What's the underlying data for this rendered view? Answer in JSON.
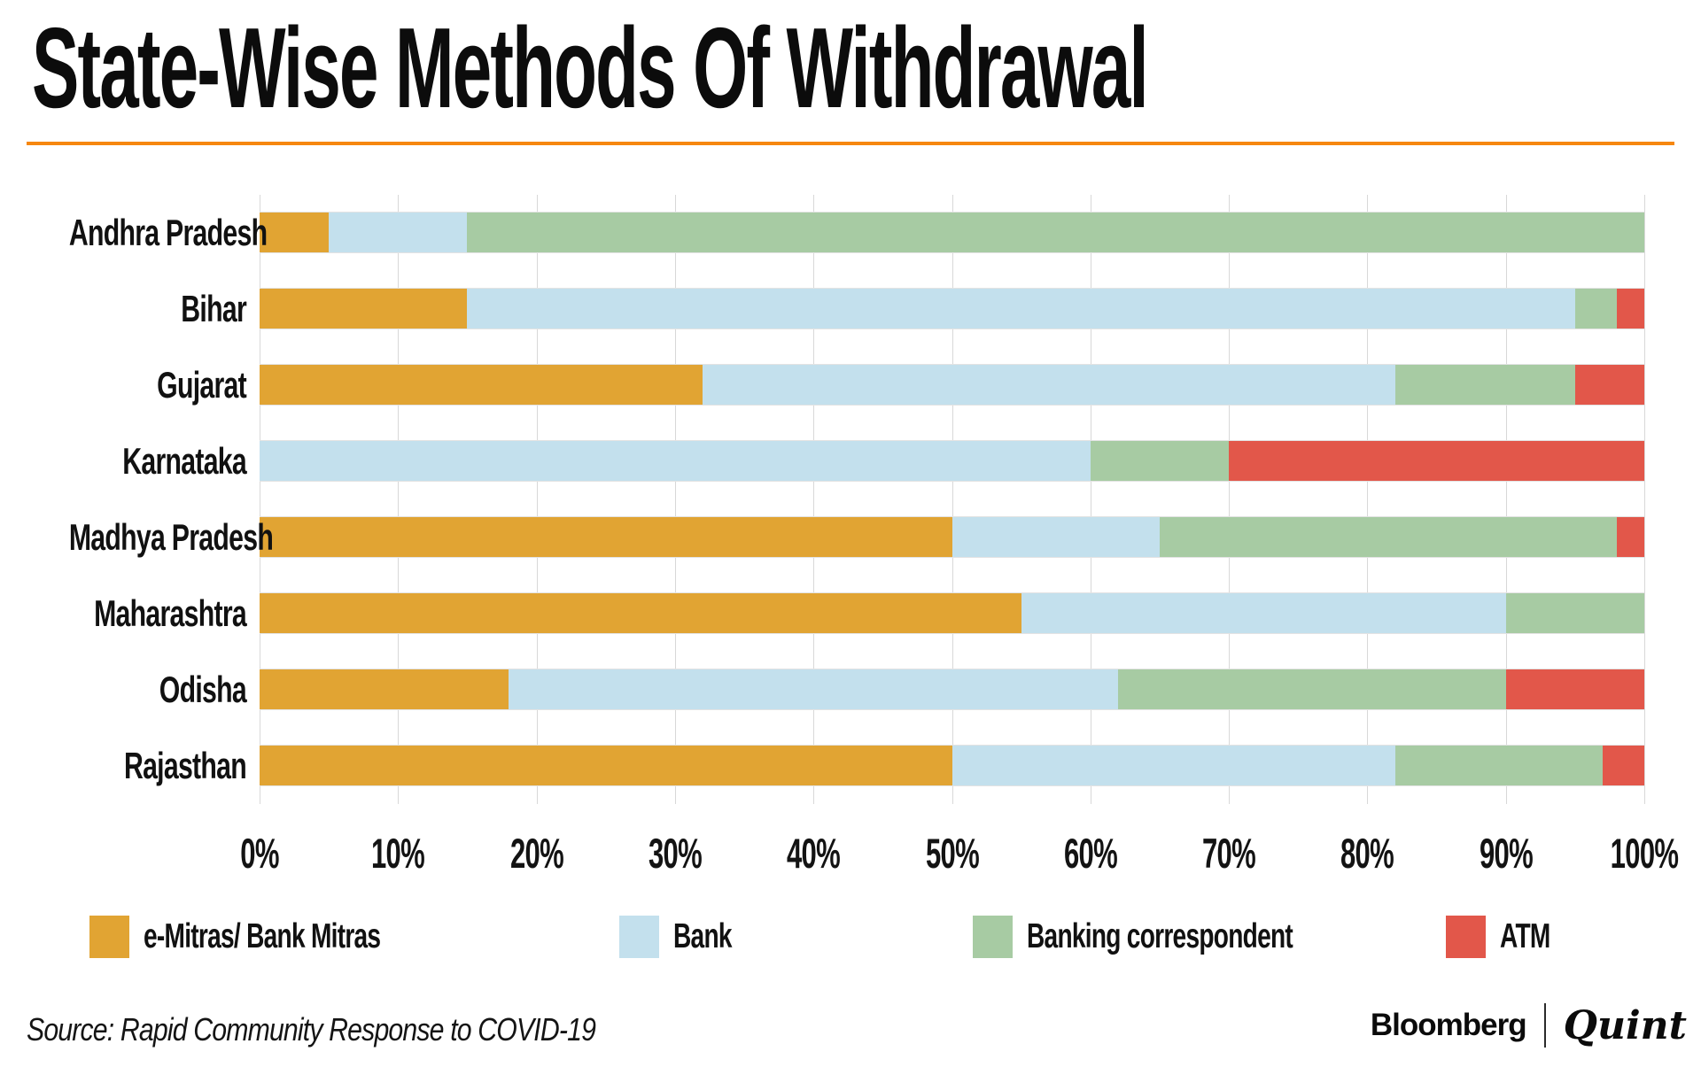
{
  "chart_data": {
    "type": "bar",
    "orientation": "horizontal",
    "stacked": true,
    "title": "State-Wise Methods Of Withdrawal",
    "categories": [
      "Andhra Pradesh",
      "Bihar",
      "Gujarat",
      "Karnataka",
      "Madhya Pradesh",
      "Maharashtra",
      "Odisha",
      "Rajasthan"
    ],
    "series": [
      {
        "name": "e-Mitras/ Bank Mitras",
        "color": "#E1A433",
        "values": [
          5,
          15,
          32,
          0,
          50,
          55,
          18,
          50
        ]
      },
      {
        "name": "Bank",
        "color": "#C3E0ED",
        "values": [
          10,
          80,
          50,
          60,
          15,
          35,
          44,
          32
        ]
      },
      {
        "name": "Banking correspondent",
        "color": "#A7CBA3",
        "values": [
          85,
          3,
          13,
          10,
          33,
          10,
          28,
          15
        ]
      },
      {
        "name": "ATM",
        "color": "#E2574A",
        "values": [
          0,
          2,
          5,
          30,
          2,
          0,
          10,
          3
        ]
      }
    ],
    "x_ticks": [
      "0%",
      "10%",
      "20%",
      "30%",
      "40%",
      "50%",
      "60%",
      "70%",
      "80%",
      "90%",
      "100%"
    ],
    "xlim": [
      0,
      100
    ],
    "unit": "percent",
    "grid": "vertical",
    "legend_position": "bottom"
  },
  "theme": {
    "rule_color": "#F6870F",
    "grid_color": "#D8D8D8",
    "text_color": "#111111",
    "background": "#FFFFFF"
  },
  "footer": {
    "source": "Source: Rapid Community Response to COVID-19",
    "brand_left": "Bloomberg",
    "brand_right": "Quint"
  }
}
